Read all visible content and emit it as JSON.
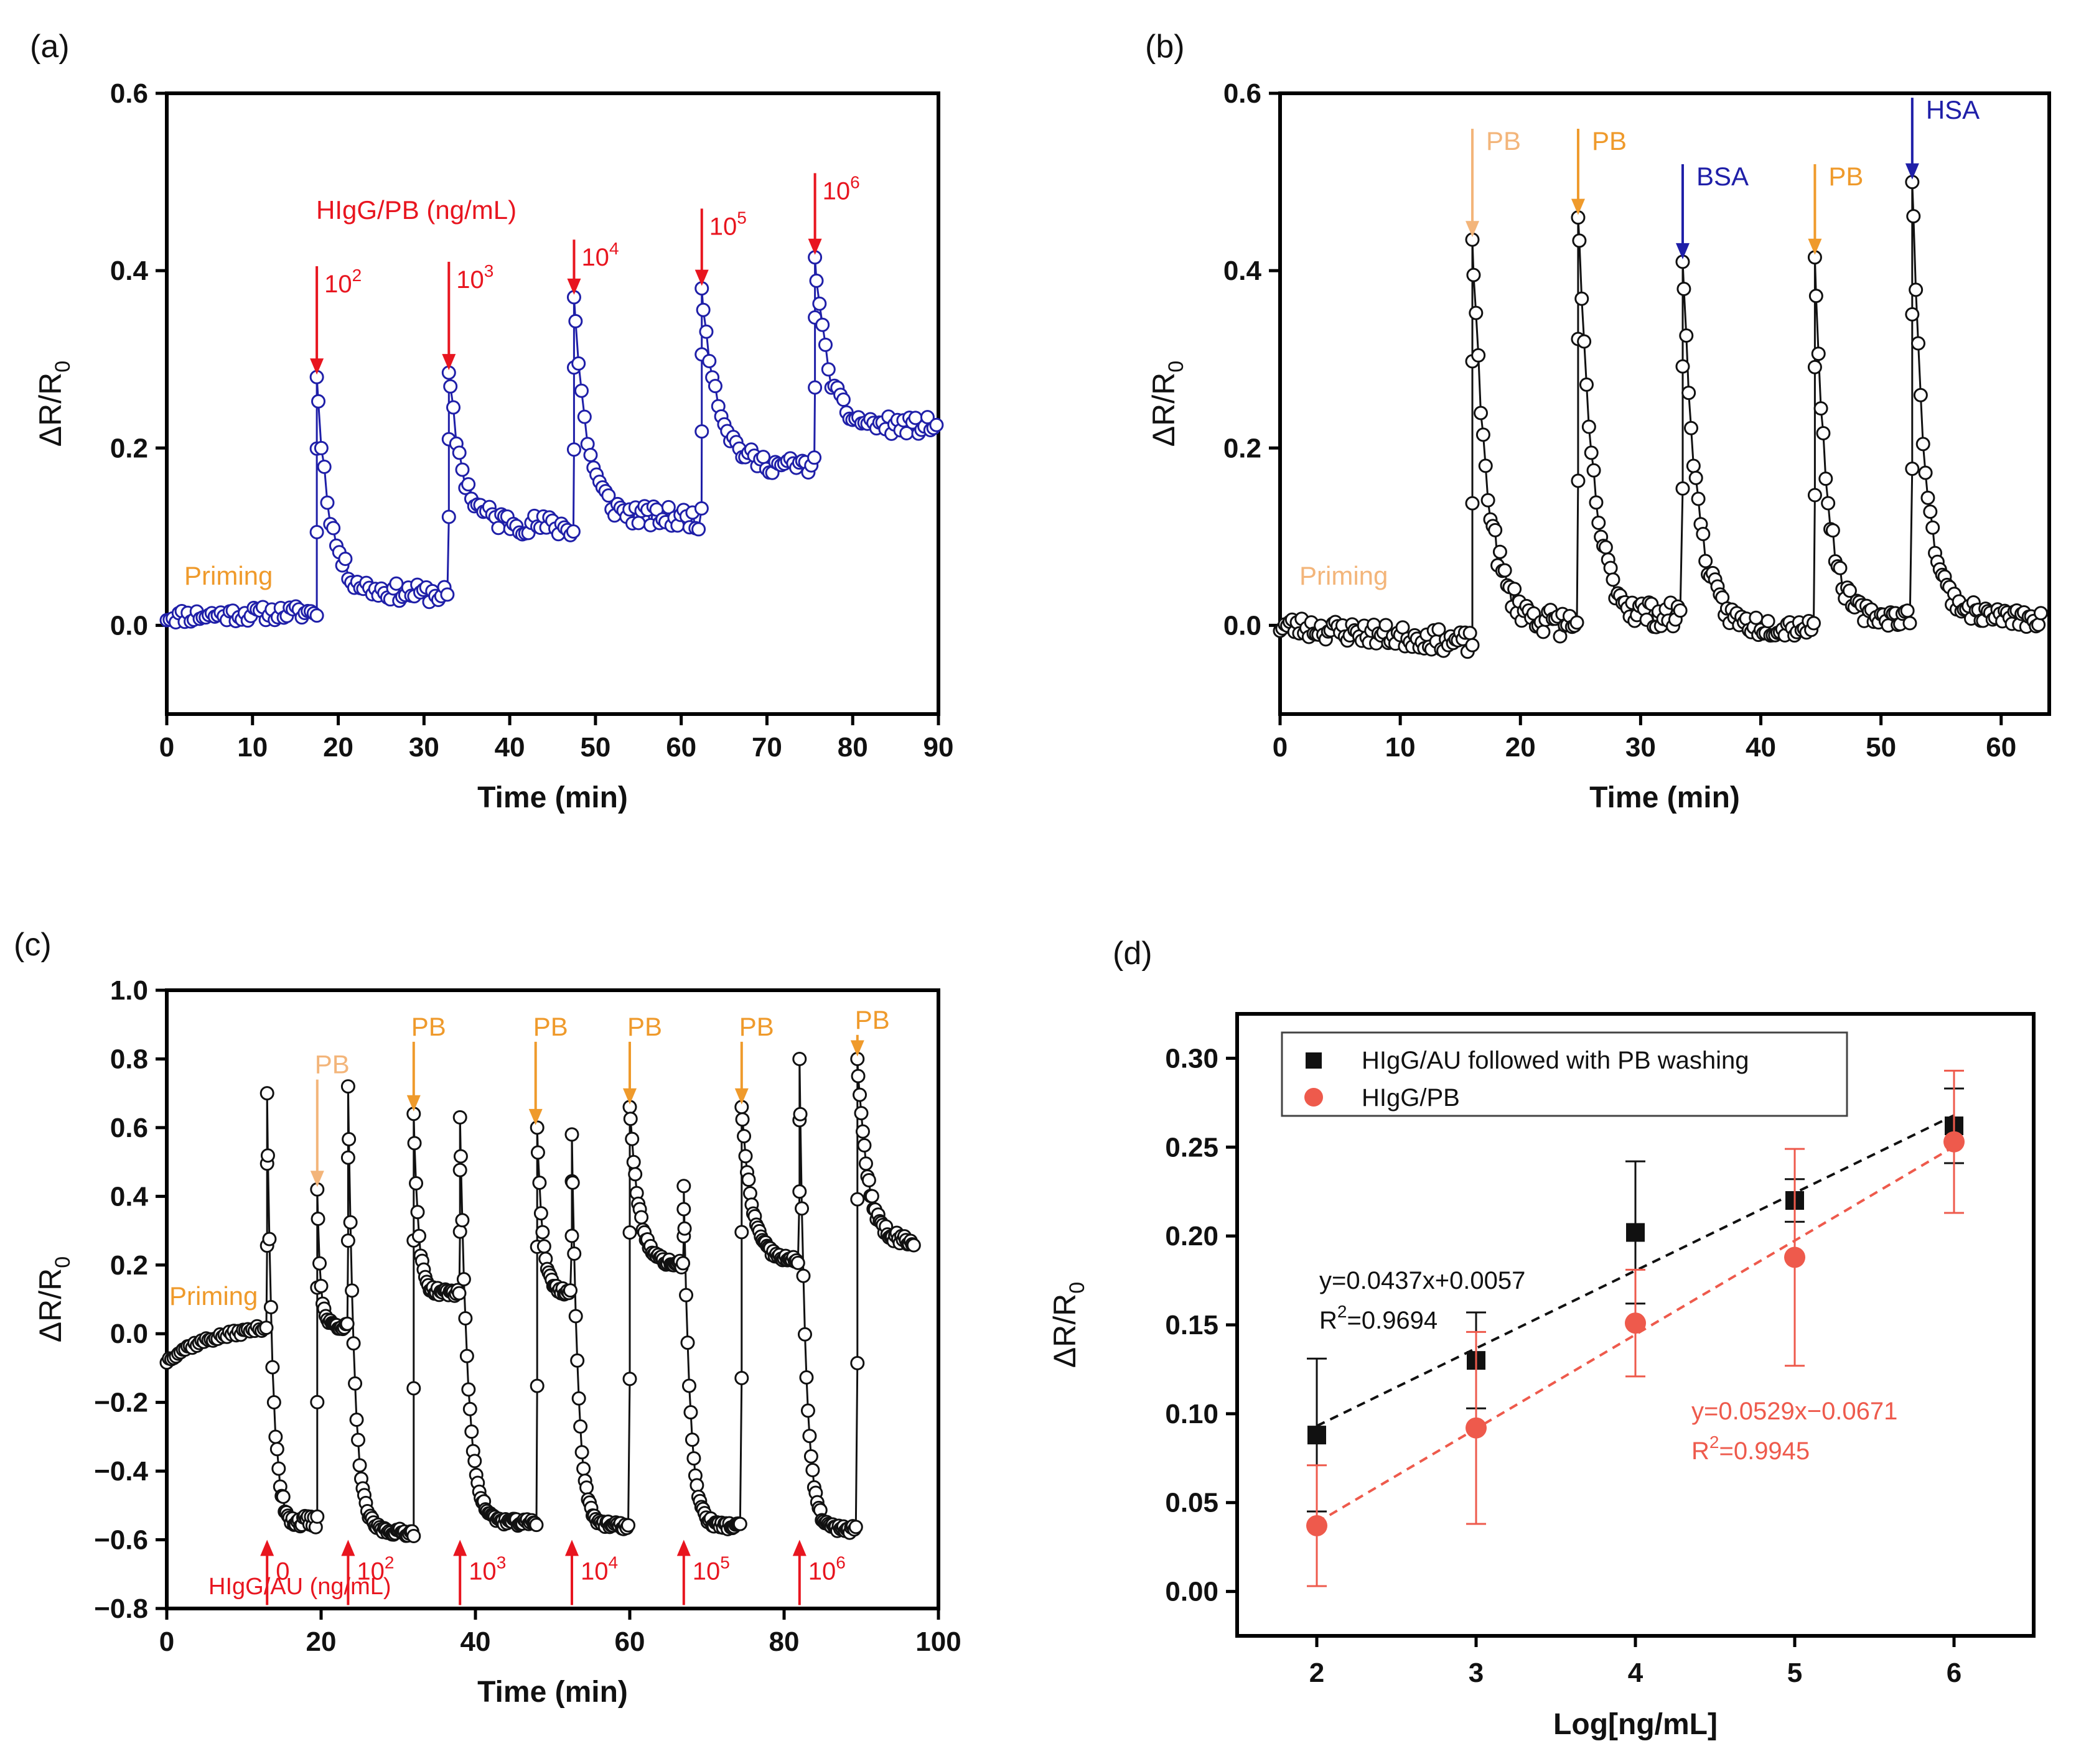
{
  "colors": {
    "navy": "#1f1fa8",
    "red": "#e8151f",
    "orange": "#ef9a2b",
    "light_orange": "#f3b57a",
    "black": "#111111",
    "salmon": "#ee5a4c"
  },
  "chart_data": [
    {
      "id": "a",
      "panel_label": "(a)",
      "type": "scatter",
      "xlabel": "Time (min)",
      "ylabel": "ΔR/R",
      "ylabel_sub": "0",
      "xlim": [
        0,
        90
      ],
      "ylim": [
        -0.1,
        0.6
      ],
      "xticks": [
        0,
        10,
        20,
        30,
        40,
        50,
        60,
        70,
        80,
        90
      ],
      "yticks": [
        0.0,
        0.2,
        0.4,
        0.6
      ],
      "tick_labels_x": [
        "0",
        "10",
        "20",
        "30",
        "40",
        "50",
        "60",
        "70",
        "80",
        "90"
      ],
      "tick_labels_y": [
        "0.0",
        "0.2",
        "0.4",
        "0.6"
      ],
      "marker_color": "#1f1fa8",
      "segments": [
        {
          "start": 0,
          "end": 17.5,
          "base": 0.01,
          "peak": 0.01,
          "end_val": 0.015,
          "tau": 2,
          "noise": 0.008,
          "step": 0.35
        },
        {
          "start": 17.5,
          "end": 32.9,
          "base": 0.04,
          "peak": 0.28,
          "end_val": 0.035,
          "tau": 1.5,
          "noise": 0.01,
          "step": 0.35
        },
        {
          "start": 32.9,
          "end": 47.5,
          "base": 0.12,
          "peak": 0.285,
          "end_val": 0.11,
          "tau": 1.5,
          "noise": 0.012,
          "step": 0.35
        },
        {
          "start": 47.5,
          "end": 62.4,
          "base": 0.125,
          "peak": 0.37,
          "end_val": 0.12,
          "tau": 1.5,
          "noise": 0.012,
          "step": 0.35
        },
        {
          "start": 62.4,
          "end": 75.6,
          "base": 0.175,
          "peak": 0.38,
          "end_val": 0.18,
          "tau": 2,
          "noise": 0.01,
          "step": 0.35
        },
        {
          "start": 75.6,
          "end": 90,
          "base": 0.225,
          "peak": 0.415,
          "end_val": 0.225,
          "tau": 1.5,
          "noise": 0.01,
          "step": 0.35
        }
      ],
      "arrow_points": [
        {
          "x": 17.5,
          "text": "10",
          "sup": "2"
        },
        {
          "x": 32.9,
          "text": "10",
          "sup": "3"
        },
        {
          "x": 47.5,
          "text": "10",
          "sup": "4"
        },
        {
          "x": 62.4,
          "text": "10",
          "sup": "5"
        },
        {
          "x": 75.6,
          "text": "10",
          "sup": "6"
        }
      ],
      "annotation_series": "HIgG/PB (ng/mL)",
      "annotation_priming": "Priming"
    },
    {
      "id": "b",
      "panel_label": "(b)",
      "type": "scatter",
      "xlabel": "Time (min)",
      "ylabel": "ΔR/R",
      "ylabel_sub": "0",
      "xlim": [
        0,
        64
      ],
      "ylim": [
        -0.1,
        0.6
      ],
      "xticks": [
        0,
        10,
        20,
        30,
        40,
        50,
        60
      ],
      "yticks": [
        0.0,
        0.2,
        0.4,
        0.6
      ],
      "tick_labels_x": [
        "0",
        "10",
        "20",
        "30",
        "40",
        "50",
        "60"
      ],
      "tick_labels_y": [
        "0.0",
        "0.2",
        "0.4",
        "0.6"
      ],
      "marker_color": "#111111",
      "segments": [
        {
          "start": 0,
          "end": 16,
          "base": 0.0,
          "peak": 0.0,
          "end_val": -0.02,
          "tau": 2,
          "noise": 0.012,
          "step": 0.2
        },
        {
          "start": 16,
          "end": 24.8,
          "base": 0.01,
          "peak": 0.435,
          "end_val": 0.0,
          "tau": 1.2,
          "noise": 0.015,
          "step": 0.2
        },
        {
          "start": 24.8,
          "end": 33.5,
          "base": 0.01,
          "peak": 0.46,
          "end_val": 0.01,
          "tau": 1.2,
          "noise": 0.015,
          "step": 0.2
        },
        {
          "start": 33.5,
          "end": 44.5,
          "base": -0.005,
          "peak": 0.41,
          "end_val": 0.0,
          "tau": 1.2,
          "noise": 0.012,
          "step": 0.2
        },
        {
          "start": 44.5,
          "end": 52.6,
          "base": 0.005,
          "peak": 0.415,
          "end_val": 0.01,
          "tau": 1.0,
          "noise": 0.01,
          "step": 0.2
        },
        {
          "start": 52.6,
          "end": 63.5,
          "base": 0.02,
          "peak": 0.5,
          "end_val": 0.005,
          "tau": 1.0,
          "noise": 0.01,
          "step": 0.2
        }
      ],
      "arrow_points": [
        {
          "x": 16.0,
          "text": "PB",
          "kind": "light_orange"
        },
        {
          "x": 24.8,
          "text": "PB",
          "kind": "orange"
        },
        {
          "x": 33.5,
          "text": "BSA",
          "kind": "navy"
        },
        {
          "x": 44.5,
          "text": "PB",
          "kind": "orange"
        },
        {
          "x": 52.6,
          "text": "HSA",
          "kind": "navy"
        }
      ],
      "annotation_priming": "Priming"
    },
    {
      "id": "c",
      "panel_label": "(c)",
      "type": "scatter",
      "xlabel": "Time (min)",
      "ylabel": "ΔR/R",
      "ylabel_sub": "0",
      "xlim": [
        0,
        100
      ],
      "ylim": [
        -0.8,
        1.0
      ],
      "xticks": [
        0,
        20,
        40,
        60,
        80,
        100
      ],
      "yticks": [
        -0.8,
        -0.6,
        -0.4,
        -0.2,
        0.0,
        0.2,
        0.4,
        0.6,
        0.8,
        1.0
      ],
      "tick_labels_x": [
        "0",
        "20",
        "40",
        "60",
        "80",
        "100"
      ],
      "tick_labels_y": [
        "−0.8",
        "−0.6",
        "−0.4",
        "−0.2",
        "0.0",
        "0.2",
        "0.4",
        "0.6",
        "0.8",
        "1.0"
      ],
      "marker_color": "#111111",
      "segments": [
        {
          "start": 0,
          "end": 13,
          "base": -0.03,
          "peak": -0.08,
          "end_val": 0.02,
          "tau": 3,
          "noise": 0.008,
          "step": 0.3
        },
        {
          "start": 13,
          "end": 19.5,
          "base": -0.55,
          "peak": 0.7,
          "end_val": -0.55,
          "tau": 0.7,
          "noise": 0.02,
          "step": 0.2
        },
        {
          "start": 19.5,
          "end": 23.5,
          "base": 0.03,
          "peak": 0.42,
          "end_val": 0.02,
          "tau": 0.4,
          "noise": 0.01,
          "step": 0.2
        },
        {
          "start": 23.5,
          "end": 32,
          "base": -0.57,
          "peak": 0.72,
          "end_val": -0.58,
          "tau": 0.8,
          "noise": 0.01,
          "step": 0.2
        },
        {
          "start": 32,
          "end": 38,
          "base": 0.12,
          "peak": 0.64,
          "end_val": 0.12,
          "tau": 0.6,
          "noise": 0.01,
          "step": 0.2
        },
        {
          "start": 38,
          "end": 48,
          "base": -0.55,
          "peak": 0.63,
          "end_val": -0.55,
          "tau": 1.0,
          "noise": 0.01,
          "step": 0.2
        },
        {
          "start": 48,
          "end": 52.5,
          "base": 0.12,
          "peak": 0.6,
          "end_val": 0.12,
          "tau": 0.7,
          "noise": 0.01,
          "step": 0.2
        },
        {
          "start": 52.5,
          "end": 60,
          "base": -0.56,
          "peak": 0.58,
          "end_val": -0.56,
          "tau": 0.8,
          "noise": 0.01,
          "step": 0.2
        },
        {
          "start": 60,
          "end": 67,
          "base": 0.2,
          "peak": 0.66,
          "end_val": 0.2,
          "tau": 1.2,
          "noise": 0.01,
          "step": 0.2
        },
        {
          "start": 67,
          "end": 74.5,
          "base": -0.56,
          "peak": 0.43,
          "end_val": -0.56,
          "tau": 0.8,
          "noise": 0.01,
          "step": 0.2
        },
        {
          "start": 74.5,
          "end": 82,
          "base": 0.22,
          "peak": 0.66,
          "end_val": 0.21,
          "tau": 1.3,
          "noise": 0.01,
          "step": 0.2
        },
        {
          "start": 82,
          "end": 89.5,
          "base": -0.57,
          "peak": 0.8,
          "end_val": -0.57,
          "tau": 0.8,
          "noise": 0.01,
          "step": 0.2
        },
        {
          "start": 89.5,
          "end": 97,
          "base": 0.27,
          "peak": 0.8,
          "end_val": 0.27,
          "tau": 1.3,
          "noise": 0.015,
          "step": 0.2
        }
      ],
      "pb_arrows": [
        {
          "x": 19.5,
          "text": "PB",
          "kind": "light_orange"
        },
        {
          "x": 32.0,
          "text": "PB",
          "kind": "orange"
        },
        {
          "x": 47.8,
          "text": "PB",
          "kind": "orange"
        },
        {
          "x": 60.0,
          "text": "PB",
          "kind": "orange"
        },
        {
          "x": 74.5,
          "text": "PB",
          "kind": "orange"
        },
        {
          "x": 89.5,
          "text": "PB",
          "kind": "orange"
        }
      ],
      "up_arrows": [
        {
          "x": 13.0,
          "text": "0",
          "sup": ""
        },
        {
          "x": 23.5,
          "text": "10",
          "sup": "2"
        },
        {
          "x": 38.0,
          "text": "10",
          "sup": "3"
        },
        {
          "x": 52.5,
          "text": "10",
          "sup": "4"
        },
        {
          "x": 67.0,
          "text": "10",
          "sup": "5"
        },
        {
          "x": 82.0,
          "text": "10",
          "sup": "6"
        }
      ],
      "annotation_series": "HIgG/AU (ng/mL)",
      "annotation_priming": "Priming"
    },
    {
      "id": "d",
      "panel_label": "(d)",
      "type": "scatter",
      "xlabel": "Log[ng/mL]",
      "ylabel": "ΔR/R",
      "ylabel_sub": "0",
      "xlim": [
        1.5,
        6.5
      ],
      "ylim": [
        -0.025,
        0.325
      ],
      "xticks": [
        2,
        3,
        4,
        5,
        6
      ],
      "yticks": [
        0.0,
        0.05,
        0.1,
        0.15,
        0.2,
        0.25,
        0.3
      ],
      "tick_labels_x": [
        "2",
        "3",
        "4",
        "5",
        "6"
      ],
      "tick_labels_y": [
        "0.00",
        "0.05",
        "0.10",
        "0.15",
        "0.20",
        "0.25",
        "0.30"
      ],
      "series": [
        {
          "name": "HIgG/AU followed with PB washing",
          "color": "#111111",
          "marker": "square",
          "x": [
            2,
            3,
            4,
            5,
            6
          ],
          "y": [
            0.088,
            0.13,
            0.202,
            0.22,
            0.262
          ],
          "err": [
            0.043,
            0.027,
            0.04,
            0.012,
            0.021
          ],
          "fit": {
            "slope": 0.0437,
            "intercept": 0.0057,
            "equation": "y=0.0437x+0.0057",
            "r2_label": "R",
            "r2_sup": "2",
            "r2_value": "=0.9694"
          }
        },
        {
          "name": "HIgG/PB",
          "color": "#ee5a4c",
          "marker": "circle",
          "x": [
            2,
            3,
            4,
            5,
            6
          ],
          "y": [
            0.037,
            0.092,
            0.151,
            0.188,
            0.253
          ],
          "err": [
            0.034,
            0.054,
            0.03,
            0.061,
            0.04
          ],
          "fit": {
            "slope": 0.0529,
            "intercept": -0.0671,
            "equation": "y=0.0529x−0.0671",
            "r2_label": "R",
            "r2_sup": "2",
            "r2_value": "=0.9945"
          }
        }
      ]
    }
  ]
}
